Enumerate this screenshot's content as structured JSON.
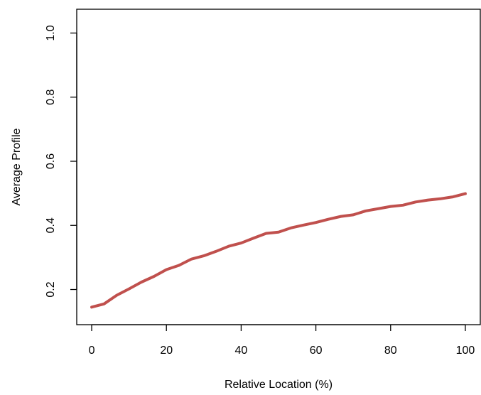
{
  "chart_data": {
    "type": "line",
    "title": "",
    "xlabel": "Relative Location (%)",
    "ylabel": "Average Profile",
    "xlim": [
      0,
      100
    ],
    "ylim": [
      0.1,
      1.0
    ],
    "xticks": [
      0,
      20,
      40,
      60,
      80,
      100
    ],
    "yticks": [
      0.2,
      0.4,
      0.6,
      0.8,
      1.0
    ],
    "xtick_labels": [
      "0",
      "20",
      "40",
      "60",
      "80",
      "100"
    ],
    "ytick_labels": [
      "0.2",
      "0.4",
      "0.6",
      "0.8",
      "1.0"
    ],
    "grid": false,
    "box": true,
    "series": [
      {
        "color": "#c0504d",
        "x": [
          0,
          3.3,
          6.7,
          10,
          13.3,
          16.7,
          20,
          23.3,
          26.7,
          30,
          33.3,
          36.7,
          40,
          43.3,
          46.7,
          50,
          53.3,
          56.7,
          60,
          63.3,
          66.7,
          70,
          73.3,
          76.7,
          80,
          83.3,
          86.7,
          90,
          93.3,
          96.7,
          100
        ],
        "y": [
          0.145,
          0.155,
          0.182,
          0.202,
          0.223,
          0.241,
          0.262,
          0.275,
          0.295,
          0.305,
          0.319,
          0.335,
          0.345,
          0.36,
          0.375,
          0.379,
          0.392,
          0.401,
          0.409,
          0.419,
          0.428,
          0.433,
          0.445,
          0.452,
          0.459,
          0.463,
          0.473,
          0.479,
          0.483,
          0.489,
          0.499
        ]
      }
    ]
  }
}
